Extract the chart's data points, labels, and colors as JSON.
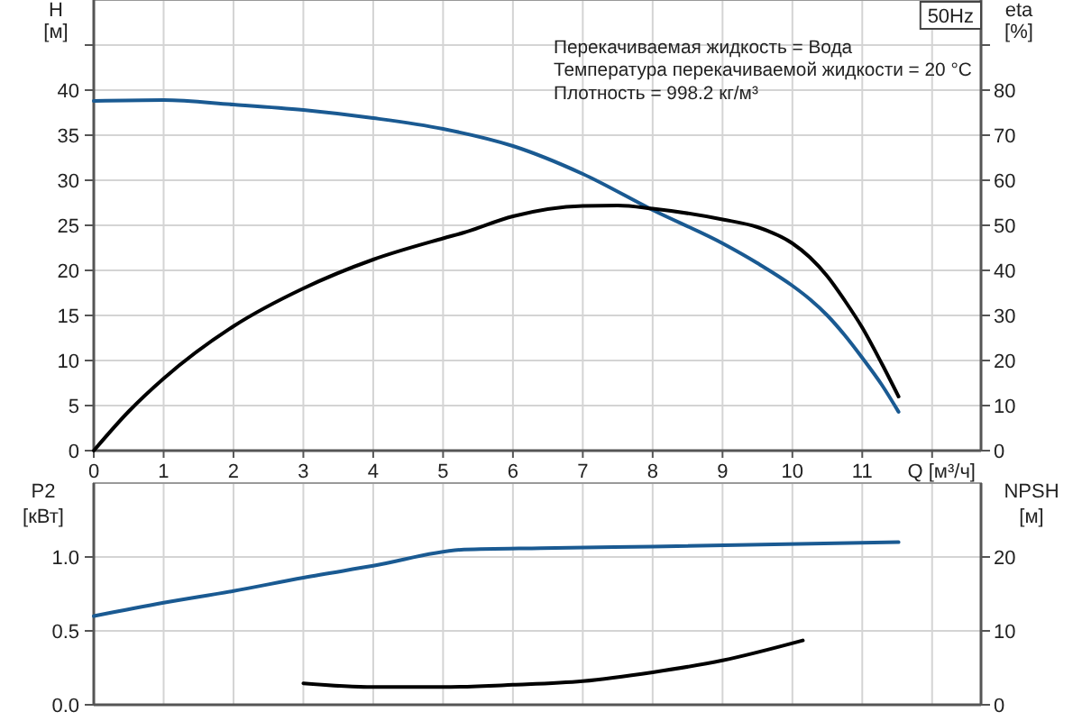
{
  "chart_data": [
    {
      "type": "line",
      "xlabel": "Q [м³/ч]",
      "ylabel": "H\n[м]",
      "y2label": "eta\n[%]",
      "annotations": [
        "50Hz",
        "Перекачиваемая жидкость = Вода",
        "Температура перекачиваемой жидкости = 20 °C",
        "Плотность = 998.2 кг/м³"
      ],
      "xlim": [
        0,
        12.7
      ],
      "xticks": [
        0,
        1,
        2,
        3,
        4,
        5,
        6,
        7,
        8,
        9,
        10,
        11,
        {
          "value": 12,
          "label": null
        }
      ],
      "ylim": [
        0,
        50
      ],
      "yticks": [
        0,
        5,
        10,
        15,
        20,
        25,
        30,
        35,
        40,
        {
          "value": 45,
          "label": null
        }
      ],
      "y2lim": [
        0,
        100
      ],
      "y2ticks": [
        0,
        10,
        20,
        30,
        40,
        50,
        60,
        70,
        80,
        {
          "value": 90,
          "label": null
        }
      ],
      "grid": true,
      "series": [
        {
          "color": "#1a5a92",
          "axis": "y",
          "x": [
            0,
            1,
            2,
            3,
            4,
            5,
            6,
            7,
            8,
            9,
            9.5,
            10,
            10.25,
            10.5,
            10.75,
            11,
            11.28,
            11.52
          ],
          "values": [
            38.8,
            38.9,
            38.4,
            37.8,
            36.9,
            35.7,
            33.8,
            30.7,
            26.7,
            23.0,
            20.8,
            18.3,
            16.8,
            15.0,
            12.8,
            10.3,
            7.3,
            4.3
          ]
        },
        {
          "color": "#000000",
          "axis": "y2",
          "x": [
            0,
            0.5,
            1,
            2,
            3,
            4,
            5,
            5.3,
            6,
            7,
            7.5,
            8,
            9,
            9.5,
            10,
            10.25,
            10.5,
            10.75,
            11,
            11.28,
            11.52
          ],
          "values": [
            0,
            8.7,
            16,
            27.6,
            36,
            42.4,
            47.1,
            48.4,
            52,
            54.3,
            54.4,
            53.7,
            51.3,
            49.6,
            46,
            42.9,
            38.7,
            33.3,
            27.3,
            19.3,
            12
          ]
        }
      ]
    },
    {
      "type": "line",
      "ylabel": "P2\n[кВт]",
      "y2label": "NPSH\n[м]",
      "xlim": [
        0,
        12.7
      ],
      "xticks": [
        0,
        1,
        2,
        3,
        4,
        5,
        6,
        7,
        8,
        9,
        10,
        11,
        12
      ],
      "tick_labels": "y",
      "ylim": [
        0,
        1.5
      ],
      "yticks": [
        {
          "value": 0,
          "label": "0.0"
        },
        0.5,
        {
          "value": 1,
          "label": "1.0"
        }
      ],
      "y2lim": [
        0,
        30
      ],
      "y2ticks": [
        0,
        10,
        20
      ],
      "grid": true,
      "series": [
        {
          "color": "#1a5a92",
          "axis": "y",
          "x": [
            0,
            1,
            2,
            3,
            4,
            5.3,
            6.4,
            8,
            11.52
          ],
          "values": [
            0.6,
            0.69,
            0.77,
            0.86,
            0.94,
            1.05,
            1.06,
            1.07,
            1.1
          ]
        },
        {
          "color": "#000000",
          "axis": "y2",
          "x": [
            3,
            4,
            5,
            6,
            7,
            8,
            9,
            10.15
          ],
          "values": [
            2.9,
            2.4,
            2.4,
            2.7,
            3.2,
            4.4,
            6.0,
            8.7
          ]
        }
      ]
    }
  ]
}
